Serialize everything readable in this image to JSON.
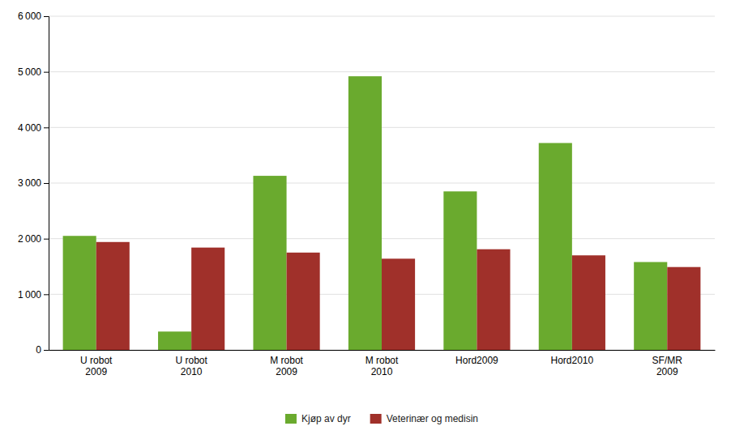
{
  "chart_data": {
    "type": "bar",
    "categories": [
      "U robot\n2009",
      "U robot\n2010",
      "M robot\n2009",
      "M robot\n2010",
      "Hord2009",
      "Hord2010",
      "SF/MR\n2009"
    ],
    "series": [
      {
        "name": "Kjøp av dyr",
        "color": "#6aaa2e",
        "values": [
          2050,
          330,
          3130,
          4920,
          2850,
          3720,
          1580
        ]
      },
      {
        "name": "Veterinær og medisin",
        "color": "#a0302a",
        "values": [
          1940,
          1840,
          1750,
          1640,
          1810,
          1700,
          1490
        ]
      }
    ],
    "ylim": [
      0,
      6000
    ],
    "yticks": [
      0,
      {
        "value": 1000,
        "label": "1 000"
      },
      {
        "value": 2000,
        "label": "2 000"
      },
      {
        "value": 3000,
        "label": "3 000"
      },
      {
        "value": 4000,
        "label": "4 000"
      },
      {
        "value": 5000,
        "label": "5 000"
      },
      {
        "value": 6000,
        "label": "6 000"
      }
    ],
    "grid": true,
    "legend": "bottom"
  }
}
